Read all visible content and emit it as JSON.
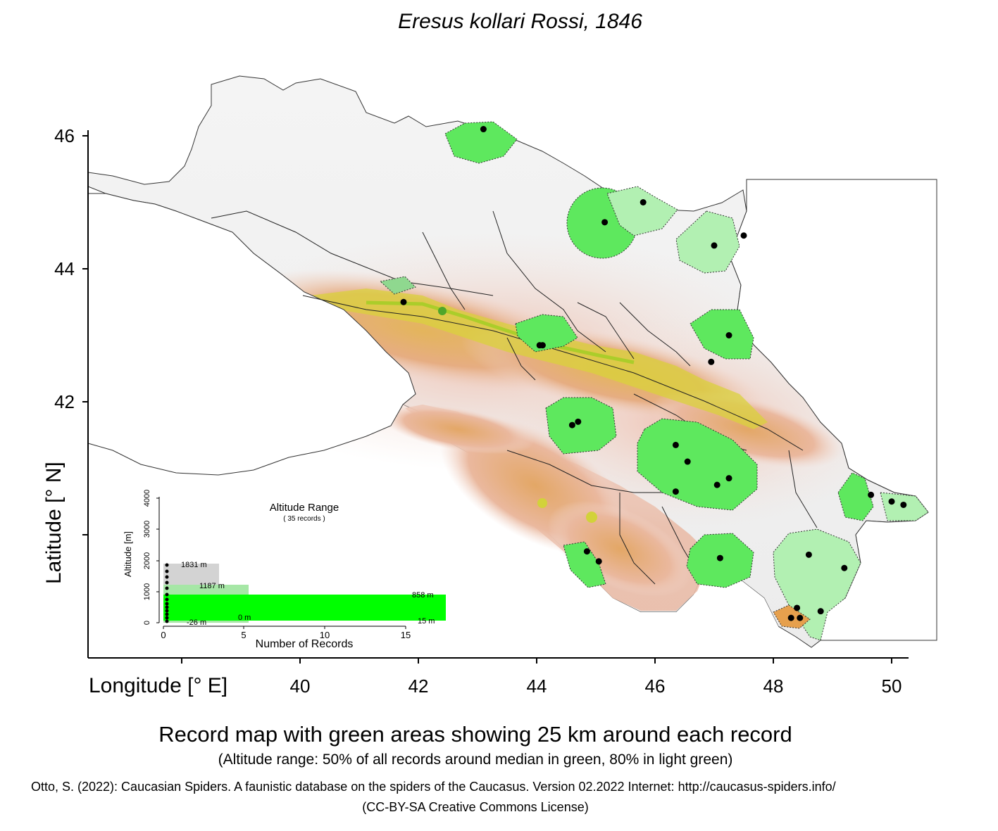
{
  "title": "Eresus kollari Rossi, 1846",
  "axes": {
    "x_label": "Longitude [° E]",
    "y_label": "Latitude [° N]",
    "x_ticks": [
      "40",
      "42",
      "44",
      "46",
      "48",
      "50"
    ],
    "y_ticks": [
      "46",
      "44",
      "42"
    ]
  },
  "map": {
    "region": "Caucasus",
    "colors": {
      "lowland": "#f1f1f1",
      "foothills": "#e7b199",
      "midland": "#e3a66b",
      "highland": "#dcd43a",
      "summit": "#a4cf1e",
      "buffer_50": "#5ee85e",
      "buffer_80": "#b2f0b2",
      "record_point": "#000000"
    },
    "records": [
      {
        "lon": 43.1,
        "lat": 46.1
      },
      {
        "lon": 45.8,
        "lat": 45.0
      },
      {
        "lon": 45.15,
        "lat": 44.7
      },
      {
        "lon": 47.0,
        "lat": 44.35
      },
      {
        "lon": 47.5,
        "lat": 44.5
      },
      {
        "lon": 41.75,
        "lat": 43.5
      },
      {
        "lon": 44.05,
        "lat": 42.85
      },
      {
        "lon": 44.1,
        "lat": 42.85
      },
      {
        "lon": 47.25,
        "lat": 43.0
      },
      {
        "lon": 46.95,
        "lat": 42.6
      },
      {
        "lon": 44.6,
        "lat": 41.65
      },
      {
        "lon": 44.7,
        "lat": 41.7
      },
      {
        "lon": 46.35,
        "lat": 41.35
      },
      {
        "lon": 46.55,
        "lat": 41.1
      },
      {
        "lon": 46.35,
        "lat": 40.65
      },
      {
        "lon": 47.05,
        "lat": 40.75
      },
      {
        "lon": 47.25,
        "lat": 40.85
      },
      {
        "lon": 49.65,
        "lat": 40.6
      },
      {
        "lon": 50.0,
        "lat": 40.5
      },
      {
        "lon": 50.2,
        "lat": 40.45
      },
      {
        "lon": 44.85,
        "lat": 39.75
      },
      {
        "lon": 45.05,
        "lat": 39.6
      },
      {
        "lon": 47.1,
        "lat": 39.65
      },
      {
        "lon": 48.6,
        "lat": 39.7
      },
      {
        "lon": 49.2,
        "lat": 39.5
      },
      {
        "lon": 48.8,
        "lat": 38.85
      },
      {
        "lon": 48.4,
        "lat": 38.9
      },
      {
        "lon": 48.3,
        "lat": 38.75
      },
      {
        "lon": 48.45,
        "lat": 38.75
      }
    ]
  },
  "inset": {
    "title": "Altitude Range",
    "subtitle": "( 35 records )",
    "y_axis_label": "Altitude [m]",
    "x_axis_label": "Number of Records",
    "y_ticks": [
      "0",
      "1000",
      "2000",
      "3000",
      "4000"
    ],
    "x_ticks": [
      "0",
      "5",
      "10",
      "15"
    ],
    "bar_labels": {
      "max": "1831  m",
      "p80_upper": "1187  m",
      "p50_upper": "858  m",
      "p50_lower": "0  m",
      "min": "-26  m",
      "count": "15  m"
    },
    "altitude_levels_m": {
      "max": 1831,
      "p80_upper": 1187,
      "p50_upper": 858,
      "p50_lower": 0,
      "min": -26
    },
    "bar_colors": {
      "range_100": "#d3d3d3",
      "range_80": "#a6e7a6",
      "range_50": "#00ff00"
    }
  },
  "caption": "Record map with green areas showing 25 km around each record",
  "subcaption": "(Altitude range: 50% of all records around median in green, 80% in light green)",
  "citation": "Otto, S. (2022): Caucasian Spiders. A faunistic database on the spiders of the Caucasus. Version 02.2022 Internet: http://caucasus-spiders.info/",
  "license": "(CC-BY-SA Creative Commons License)"
}
